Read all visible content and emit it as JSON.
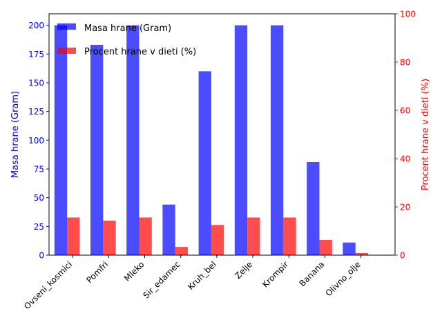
{
  "chart_data": {
    "type": "bar",
    "categories": [
      "Ovseni_kosmici",
      "Pomfri",
      "Mleko",
      "Sir_edamec",
      "Kruh_bel",
      "Zelje",
      "Krompir",
      "Banana",
      "Olivno_olje"
    ],
    "series": [
      {
        "name": "Masa hrane (Gram)",
        "axis": "left",
        "color": "#0000ff",
        "opacity": 0.7,
        "values": [
          200,
          183,
          200,
          44,
          160,
          200,
          200,
          81,
          11
        ]
      },
      {
        "name": "Procent hrane v dieti (%)",
        "axis": "right",
        "color": "#ff0000",
        "opacity": 0.7,
        "values": [
          15.6,
          14.3,
          15.6,
          3.4,
          12.5,
          15.6,
          15.6,
          6.3,
          0.9
        ]
      }
    ],
    "ylabel_left": "Masa hrane (Gram)",
    "ylabel_right": "Procent hrane v dieti (%)",
    "ylim_left": [
      0,
      210
    ],
    "ylim_right": [
      0,
      100
    ],
    "yticks_left": [
      0,
      25,
      50,
      75,
      100,
      125,
      150,
      175,
      200
    ],
    "yticks_right": [
      0,
      20,
      40,
      60,
      80,
      100
    ],
    "left_axis_color": "#0000ff",
    "right_axis_color": "#ff0000",
    "legend_position": "top-left",
    "grid": false
  }
}
